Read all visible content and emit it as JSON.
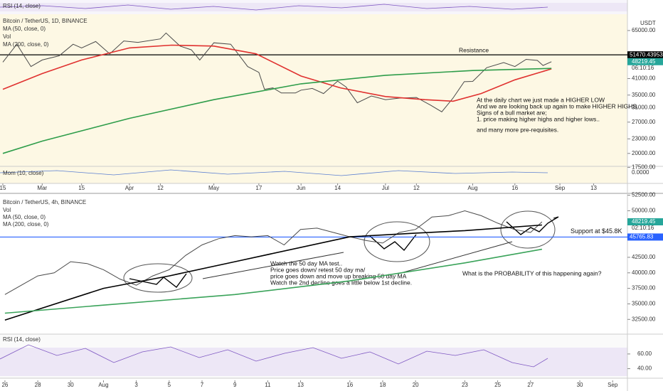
{
  "chart_data": [
    {
      "type": "line",
      "title": "Bitcoin / TetherUS, 1D, BINANCE",
      "log": true,
      "currency": "USDT",
      "volume_label": "Vol",
      "rsi_label": "RSI (14, close)",
      "mom_label": "Mom (10, close)",
      "mom_axis_label": "0.0000",
      "xlim": [
        -1,
        222
      ],
      "ylim": [
        15000,
        76000
      ],
      "xticks": [
        {
          "value": 0,
          "label": "15"
        },
        {
          "value": 14,
          "label": "Mar"
        },
        {
          "value": 28,
          "label": "15"
        },
        {
          "value": 45,
          "label": "Apr"
        },
        {
          "value": 56,
          "label": "12"
        },
        {
          "value": 75,
          "label": "May"
        },
        {
          "value": 91,
          "label": "17"
        },
        {
          "value": 106,
          "label": "Jun"
        },
        {
          "value": 119,
          "label": "14"
        },
        {
          "value": 136,
          "label": "Jul"
        },
        {
          "value": 147,
          "label": "12"
        },
        {
          "value": 167,
          "label": "Aug"
        },
        {
          "value": 182,
          "label": "16"
        },
        {
          "value": 198,
          "label": "Sep"
        },
        {
          "value": 210,
          "label": "13"
        }
      ],
      "yticks": [
        {
          "value": 65000,
          "label": "65000.00"
        },
        {
          "value": 41000,
          "label": "41000.00"
        },
        {
          "value": 35000,
          "label": "35000.00"
        },
        {
          "value": 31000,
          "label": "31000.00"
        },
        {
          "value": 27000,
          "label": "27000.00"
        },
        {
          "value": 23000,
          "label": "23000.00"
        },
        {
          "value": 20000,
          "label": "20000.00"
        },
        {
          "value": 17500,
          "label": "17500.00"
        }
      ],
      "series": [
        {
          "name": "Bitcoin / TetherUS, 1D, BINANCE",
          "color": "#4a4a4a",
          "x": [
            0,
            5,
            10,
            14,
            20,
            25,
            28,
            33,
            38,
            43,
            48,
            56,
            58,
            63,
            67,
            70,
            75,
            81,
            85,
            87,
            91,
            93,
            96,
            99,
            104,
            106,
            110,
            114,
            119,
            122,
            126,
            131,
            136,
            141,
            147,
            152,
            156,
            160,
            164,
            167,
            172,
            178,
            182,
            186,
            190,
            192,
            195
          ],
          "values": [
            48000,
            57000,
            46000,
            49000,
            51000,
            57000,
            55000,
            58500,
            52000,
            58800,
            58000,
            60000,
            63500,
            56000,
            54000,
            49000,
            57800,
            57000,
            49500,
            46000,
            43500,
            37000,
            37500,
            35700,
            35700,
            36700,
            37300,
            35500,
            40000,
            37800,
            32500,
            34700,
            33500,
            34000,
            34200,
            31800,
            29800,
            34000,
            39800,
            39900,
            45500,
            47800,
            46000,
            49300,
            48800,
            46500,
            48200
          ]
        },
        {
          "name": "MA (50, close, 0)",
          "color": "#e0312f",
          "x": [
            0,
            14,
            28,
            45,
            60,
            75,
            90,
            106,
            120,
            136,
            150,
            160,
            170,
            182,
            195
          ],
          "values": [
            37000,
            43000,
            49000,
            55000,
            56500,
            56000,
            52000,
            42000,
            37500,
            34500,
            33500,
            33000,
            35500,
            40500,
            45000
          ]
        },
        {
          "name": "MA (200, close, 0)",
          "color": "#2e9d4a",
          "x": [
            0,
            14,
            45,
            75,
            106,
            136,
            167,
            195
          ],
          "values": [
            20000,
            22500,
            28000,
            33500,
            39000,
            42300,
            44300,
            45200
          ]
        }
      ],
      "resistance": {
        "label": "Resistance",
        "value": 51470.43953,
        "value_label": "51470.43953"
      },
      "last_price": 48219.45,
      "last_price_label": "48219.45",
      "countdown": "06:10:16",
      "annotation": [
        "At the daily chart we just made a HIGHER LOW",
        "And we are looking back up again to make HIGHER HIGHS.",
        "Signs of a bull market are;",
        "1. price making higher highs and higher lows..",
        "and many more pre-requisites."
      ]
    },
    {
      "type": "line",
      "title": "Bitcoin / TetherUS, 4h, BINANCE",
      "log": false,
      "volume_label": "Vol",
      "rsi_label": "RSI (14, close)",
      "xlim": [
        -0.3,
        37.9
      ],
      "ylim": [
        30700,
        52800
      ],
      "xticks": [
        {
          "value": 0,
          "label": "26"
        },
        {
          "value": 2,
          "label": "28"
        },
        {
          "value": 4,
          "label": "30"
        },
        {
          "value": 6,
          "label": "Aug"
        },
        {
          "value": 8,
          "label": "3"
        },
        {
          "value": 10,
          "label": "5"
        },
        {
          "value": 12,
          "label": "7"
        },
        {
          "value": 14,
          "label": "9"
        },
        {
          "value": 16,
          "label": "11"
        },
        {
          "value": 18,
          "label": "13"
        },
        {
          "value": 21,
          "label": "16"
        },
        {
          "value": 23,
          "label": "18"
        },
        {
          "value": 25,
          "label": "20"
        },
        {
          "value": 28,
          "label": "23"
        },
        {
          "value": 30,
          "label": "25"
        },
        {
          "value": 32,
          "label": "27"
        },
        {
          "value": 35,
          "label": "30"
        },
        {
          "value": 37,
          "label": "Sep"
        }
      ],
      "yticks": [
        {
          "value": 52500,
          "label": "52500.00"
        },
        {
          "value": 50000,
          "label": "50000.00"
        },
        {
          "value": 42500,
          "label": "42500.00"
        },
        {
          "value": 40000,
          "label": "40000.00"
        },
        {
          "value": 37500,
          "label": "37500.00"
        },
        {
          "value": 35000,
          "label": "35000.00"
        },
        {
          "value": 32500,
          "label": "32500.00"
        }
      ],
      "series": [
        {
          "name": "Bitcoin / TetherUS, 4h, BINANCE",
          "color": "#4a4a4a",
          "x": [
            0,
            1,
            2,
            3,
            4,
            5,
            6,
            7,
            8,
            9,
            10,
            11,
            12,
            13,
            14,
            15,
            16,
            17,
            18,
            19,
            20,
            21,
            22,
            23,
            24,
            25,
            26,
            27,
            28,
            29,
            30,
            31,
            32,
            32.7
          ],
          "values": [
            36500,
            38000,
            39500,
            40000,
            41800,
            41500,
            40500,
            39000,
            38000,
            39500,
            40500,
            42800,
            44500,
            45500,
            46000,
            45800,
            46000,
            44500,
            47000,
            47200,
            46500,
            45800,
            45200,
            44800,
            46500,
            47000,
            49000,
            49200,
            50000,
            49200,
            48000,
            47000,
            46500,
            48219
          ]
        },
        {
          "name": "MA (50, close, 0)",
          "color": "#000000",
          "x": [
            0,
            6,
            10,
            14,
            21,
            25,
            28,
            32.7
          ],
          "values": [
            32400,
            37500,
            39500,
            41800,
            45800,
            46400,
            46800,
            47700
          ]
        },
        {
          "name": "MA (200, close, 0)",
          "color": "#3aa35a",
          "x": [
            0,
            6,
            14,
            21,
            28,
            32.7
          ],
          "values": [
            33500,
            34800,
            36500,
            38700,
            41600,
            43800
          ]
        }
      ],
      "support": {
        "label": "Support at $45.8K",
        "value": 45765.83,
        "value_label": "45765.83",
        "color": "#2962ff"
      },
      "last_price": 48219.45,
      "last_price_label": "48219.45",
      "countdown": "02:10:16",
      "rsi": {
        "ylim": [
          27,
          87
        ],
        "yticks": [
          {
            "value": 60,
            "label": "60.00"
          },
          {
            "value": 40,
            "label": "40.00"
          }
        ]
      },
      "annotation": [
        "Watch the 50 day MA test..",
        "Price goes down/ retest 50 day ma/",
        "price goes down and move up breaking 50 day MA",
        "Watch the 2nd decline goes a little below 1st decline."
      ],
      "question": "What is the PROBABILITY of this happening again?"
    }
  ]
}
